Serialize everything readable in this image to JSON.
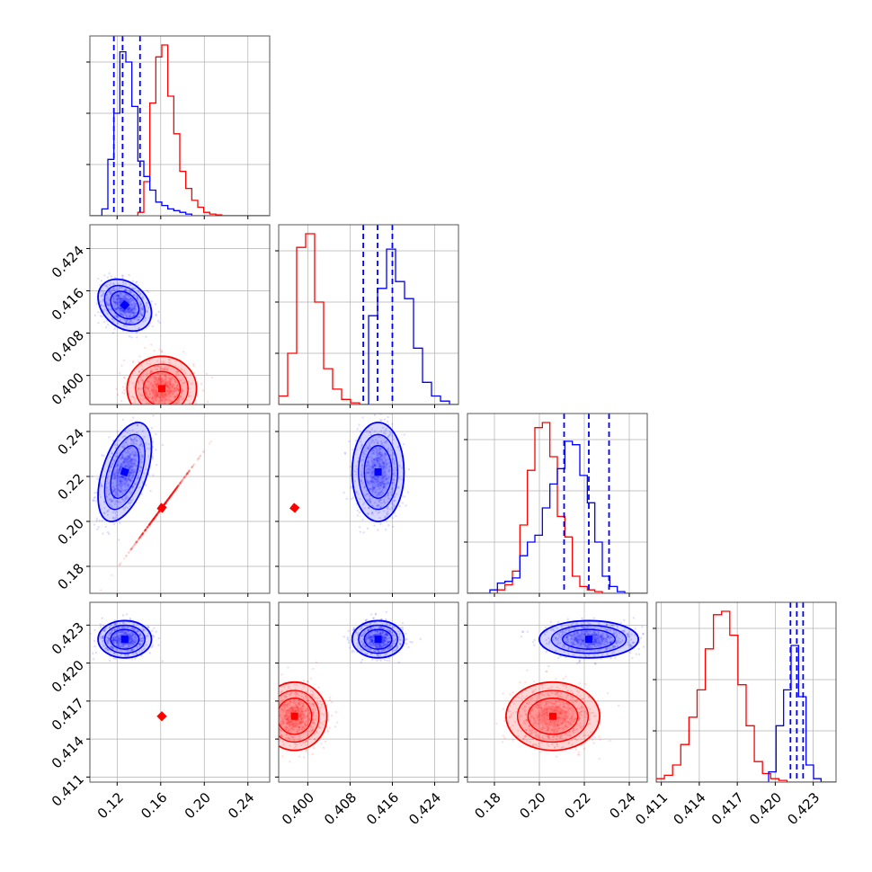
{
  "chart_data": {
    "type": "corner",
    "colors": {
      "a": "#ff0000",
      "b": "#0000ff",
      "grid": "#b0b0b0"
    },
    "parameters": [
      {
        "ticks": [
          "0.12",
          "0.16",
          "0.20",
          "0.24"
        ],
        "range": [
          0.095,
          0.26
        ]
      },
      {
        "ticks": [
          "0.400",
          "0.408",
          "0.416",
          "0.424"
        ],
        "range": [
          0.3945,
          0.4285
        ]
      },
      {
        "ticks": [
          "0.18",
          "0.20",
          "0.22",
          "0.24"
        ],
        "range": [
          0.168,
          0.248
        ]
      },
      {
        "ticks": [
          "0.411",
          "0.414",
          "0.417",
          "0.420",
          "0.423"
        ],
        "range": [
          0.4106,
          0.4248
        ]
      }
    ],
    "series": [
      {
        "color": "#ff0000",
        "means": [
          0.161,
          0.3975,
          0.206,
          0.4158
        ],
        "sds": [
          0.013,
          0.0025,
          0.0085,
          0.0011
        ],
        "correlations": [
          [
            0,
            0,
            0
          ],
          [
            1,
            2,
            0
          ],
          [
            3,
            0,
            0
          ]
        ],
        "quantiles": null,
        "hist": [
          [
            0,
            0,
            0,
            0,
            0,
            0,
            0,
            0,
            0.02,
            0.2,
            0.66,
            0.93,
            1.0,
            0.7,
            0.48,
            0.26,
            0.16,
            0.09,
            0.05,
            0.02,
            0.01,
            0.005,
            0,
            0,
            0,
            0,
            0,
            0,
            0,
            0
          ],
          [
            0.05,
            0.3,
            0.92,
            1.0,
            0.6,
            0.21,
            0.09,
            0.03,
            0.01,
            0,
            0,
            0,
            0,
            0,
            0,
            0,
            0,
            0,
            0,
            0
          ],
          [
            0,
            0,
            0,
            0,
            0.02,
            0.05,
            0.13,
            0.4,
            0.72,
            0.97,
            1.0,
            0.8,
            0.45,
            0.33,
            0.1,
            0.04,
            0.02,
            0.01,
            0,
            0,
            0,
            0,
            0,
            0
          ],
          [
            0.02,
            0.04,
            0.1,
            0.22,
            0.38,
            0.54,
            0.78,
            0.98,
            1.0,
            0.86,
            0.57,
            0.33,
            0.12,
            0.05,
            0.02,
            0.01,
            0,
            0,
            0,
            0,
            0,
            0
          ]
        ]
      },
      {
        "color": "#0000ff",
        "means": [
          0.127,
          0.4133,
          0.222,
          0.42188
        ],
        "sds": [
          0.01,
          0.002,
          0.009,
          0.0006
        ],
        "correlations": [
          [
            -0.3,
            0,
            0
          ],
          [
            0.5,
            0,
            0
          ],
          [
            0,
            0,
            0
          ]
        ],
        "quantiles": [
          [
            0.117,
            0.125,
            0.141
          ],
          [
            0.4105,
            0.4132,
            0.416
          ],
          [
            0.211,
            0.222,
            0.231
          ],
          [
            0.4212,
            0.4217,
            0.4222
          ]
        ],
        "hist": [
          [
            0,
            0,
            0.04,
            0.33,
            0.6,
            0.96,
            0.9,
            0.64,
            0.32,
            0.23,
            0.15,
            0.08,
            0.06,
            0.04,
            0.03,
            0.02,
            0.01,
            0,
            0,
            0,
            0,
            0,
            0,
            0,
            0,
            0,
            0,
            0,
            0,
            0
          ],
          [
            0,
            0,
            0,
            0,
            0,
            0,
            0,
            0,
            0,
            0,
            0.52,
            0.68,
            0.91,
            0.72,
            0.62,
            0.33,
            0.13,
            0.05,
            0.02,
            0
          ],
          [
            0,
            0,
            0,
            0.02,
            0.06,
            0.07,
            0.09,
            0.22,
            0.3,
            0.34,
            0.5,
            0.64,
            0.73,
            0.89,
            0.87,
            0.69,
            0.53,
            0.3,
            0.1,
            0.04,
            0.01,
            0,
            0,
            0
          ],
          [
            0,
            0,
            0,
            0,
            0,
            0,
            0,
            0,
            0,
            0,
            0,
            0,
            0,
            0,
            0,
            0.06,
            0.33,
            0.54,
            0.8,
            0.5,
            0.1,
            0.02,
            0,
            0
          ]
        ]
      }
    ]
  }
}
